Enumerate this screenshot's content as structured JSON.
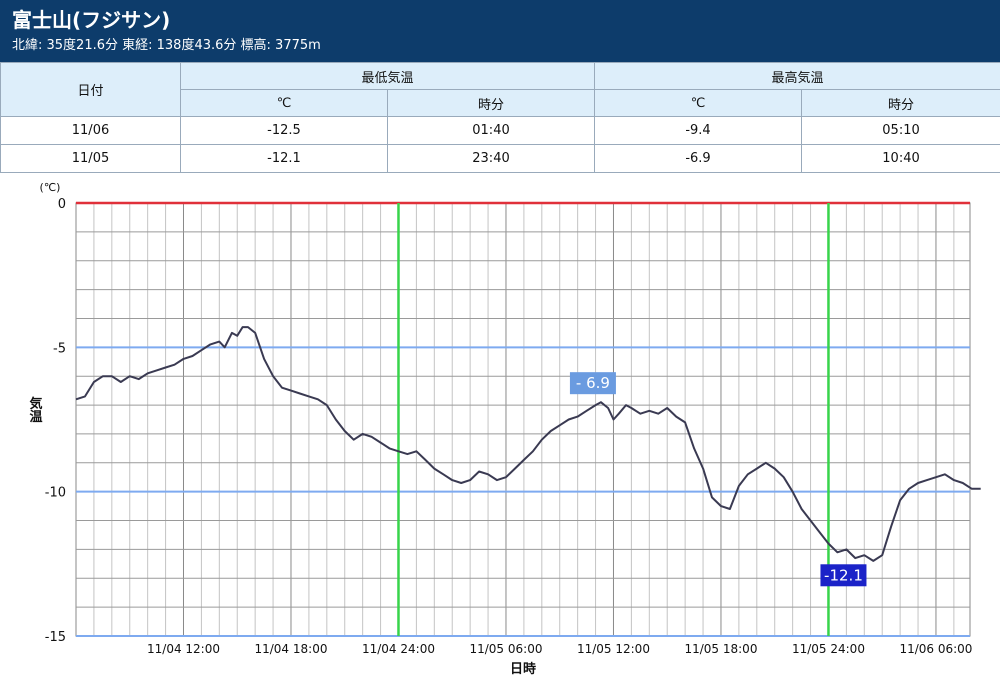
{
  "header": {
    "title": "富士山(フジサン)",
    "coords": "北緯: 35度21.6分 東経: 138度43.6分 標高: 3775m"
  },
  "table": {
    "date_header": "日付",
    "min_header": "最低気温",
    "max_header": "最高気温",
    "unit_label": "℃",
    "time_label": "時分",
    "rows": [
      {
        "date": "11/06",
        "min": "-12.5",
        "min_time": "01:40",
        "max": "-9.4",
        "max_time": "05:10"
      },
      {
        "date": "11/05",
        "min": "-12.1",
        "min_time": "23:40",
        "max": "-6.9",
        "max_time": "10:40"
      }
    ]
  },
  "chart_data": {
    "type": "line",
    "unit_label": "(℃)",
    "ylabel": "気温",
    "xlabel": "日時",
    "ylim": [
      -15,
      0
    ],
    "y_ticks": [
      0,
      -5,
      -10,
      -15
    ],
    "x_range_hours": [
      6,
      54
    ],
    "x_ticks": [
      {
        "hour": 12,
        "label": "11/04 12:00"
      },
      {
        "hour": 18,
        "label": "11/04 18:00"
      },
      {
        "hour": 24,
        "label": "11/04 24:00"
      },
      {
        "hour": 30,
        "label": "11/05 06:00"
      },
      {
        "hour": 36,
        "label": "11/05 12:00"
      },
      {
        "hour": 42,
        "label": "11/05 18:00"
      },
      {
        "hour": 48,
        "label": "11/05 24:00"
      },
      {
        "hour": 54,
        "label": "11/06 06:00"
      }
    ],
    "series": [
      {
        "name": "",
        "points": [
          [
            6.0,
            -6.8
          ],
          [
            6.5,
            -6.7
          ],
          [
            7.0,
            -6.2
          ],
          [
            7.5,
            -6.0
          ],
          [
            8.0,
            -6.0
          ],
          [
            8.5,
            -6.2
          ],
          [
            9.0,
            -6.0
          ],
          [
            9.5,
            -6.1
          ],
          [
            10.0,
            -5.9
          ],
          [
            10.5,
            -5.8
          ],
          [
            11.0,
            -5.7
          ],
          [
            11.5,
            -5.6
          ],
          [
            12.0,
            -5.4
          ],
          [
            12.5,
            -5.3
          ],
          [
            13.0,
            -5.1
          ],
          [
            13.5,
            -4.9
          ],
          [
            14.0,
            -4.8
          ],
          [
            14.3,
            -5.0
          ],
          [
            14.7,
            -4.5
          ],
          [
            15.0,
            -4.6
          ],
          [
            15.3,
            -4.3
          ],
          [
            15.6,
            -4.3
          ],
          [
            16.0,
            -4.5
          ],
          [
            16.5,
            -5.4
          ],
          [
            17.0,
            -6.0
          ],
          [
            17.5,
            -6.4
          ],
          [
            18.0,
            -6.5
          ],
          [
            18.5,
            -6.6
          ],
          [
            19.0,
            -6.7
          ],
          [
            19.5,
            -6.8
          ],
          [
            20.0,
            -7.0
          ],
          [
            20.5,
            -7.5
          ],
          [
            21.0,
            -7.9
          ],
          [
            21.5,
            -8.2
          ],
          [
            22.0,
            -8.0
          ],
          [
            22.5,
            -8.1
          ],
          [
            23.0,
            -8.3
          ],
          [
            23.5,
            -8.5
          ],
          [
            24.0,
            -8.6
          ],
          [
            24.5,
            -8.7
          ],
          [
            25.0,
            -8.6
          ],
          [
            25.5,
            -8.9
          ],
          [
            26.0,
            -9.2
          ],
          [
            26.5,
            -9.4
          ],
          [
            27.0,
            -9.6
          ],
          [
            27.5,
            -9.7
          ],
          [
            28.0,
            -9.6
          ],
          [
            28.5,
            -9.3
          ],
          [
            29.0,
            -9.4
          ],
          [
            29.5,
            -9.6
          ],
          [
            30.0,
            -9.5
          ],
          [
            30.5,
            -9.2
          ],
          [
            31.0,
            -8.9
          ],
          [
            31.5,
            -8.6
          ],
          [
            32.0,
            -8.2
          ],
          [
            32.5,
            -7.9
          ],
          [
            33.0,
            -7.7
          ],
          [
            33.5,
            -7.5
          ],
          [
            34.0,
            -7.4
          ],
          [
            34.5,
            -7.2
          ],
          [
            35.0,
            -7.0
          ],
          [
            35.3,
            -6.9
          ],
          [
            35.7,
            -7.1
          ],
          [
            36.0,
            -7.5
          ],
          [
            36.3,
            -7.3
          ],
          [
            36.7,
            -7.0
          ],
          [
            37.0,
            -7.1
          ],
          [
            37.5,
            -7.3
          ],
          [
            38.0,
            -7.2
          ],
          [
            38.5,
            -7.3
          ],
          [
            39.0,
            -7.1
          ],
          [
            39.5,
            -7.4
          ],
          [
            40.0,
            -7.6
          ],
          [
            40.5,
            -8.5
          ],
          [
            41.0,
            -9.2
          ],
          [
            41.5,
            -10.2
          ],
          [
            42.0,
            -10.5
          ],
          [
            42.5,
            -10.6
          ],
          [
            43.0,
            -9.8
          ],
          [
            43.5,
            -9.4
          ],
          [
            44.0,
            -9.2
          ],
          [
            44.5,
            -9.0
          ],
          [
            45.0,
            -9.2
          ],
          [
            45.5,
            -9.5
          ],
          [
            46.0,
            -10.0
          ],
          [
            46.5,
            -10.6
          ],
          [
            47.0,
            -11.0
          ],
          [
            47.5,
            -11.4
          ],
          [
            48.0,
            -11.8
          ],
          [
            48.5,
            -12.1
          ],
          [
            49.0,
            -12.0
          ],
          [
            49.5,
            -12.3
          ],
          [
            50.0,
            -12.2
          ],
          [
            50.5,
            -12.4
          ],
          [
            51.0,
            -12.2
          ],
          [
            51.5,
            -11.2
          ],
          [
            52.0,
            -10.3
          ],
          [
            52.5,
            -9.9
          ],
          [
            53.0,
            -9.7
          ],
          [
            53.5,
            -9.6
          ],
          [
            54.0,
            -9.5
          ],
          [
            54.5,
            -9.4
          ],
          [
            55.0,
            -9.6
          ],
          [
            55.5,
            -9.7
          ],
          [
            56.0,
            -9.9
          ],
          [
            56.5,
            -9.9
          ]
        ]
      }
    ],
    "annotations": [
      {
        "label": "- 6.9",
        "hour": 35.3,
        "value": -6.9,
        "color": "#6a9be0"
      },
      {
        "label": "-12.1",
        "hour": 48.0,
        "value": -12.1,
        "color": "#1b23c8"
      }
    ],
    "colors": {
      "line": "#3a3a52",
      "zero_line": "#e0303a",
      "major_h": "#7eaaf0",
      "day_line": "#38d44a",
      "grid": "#aaaaaa"
    }
  }
}
